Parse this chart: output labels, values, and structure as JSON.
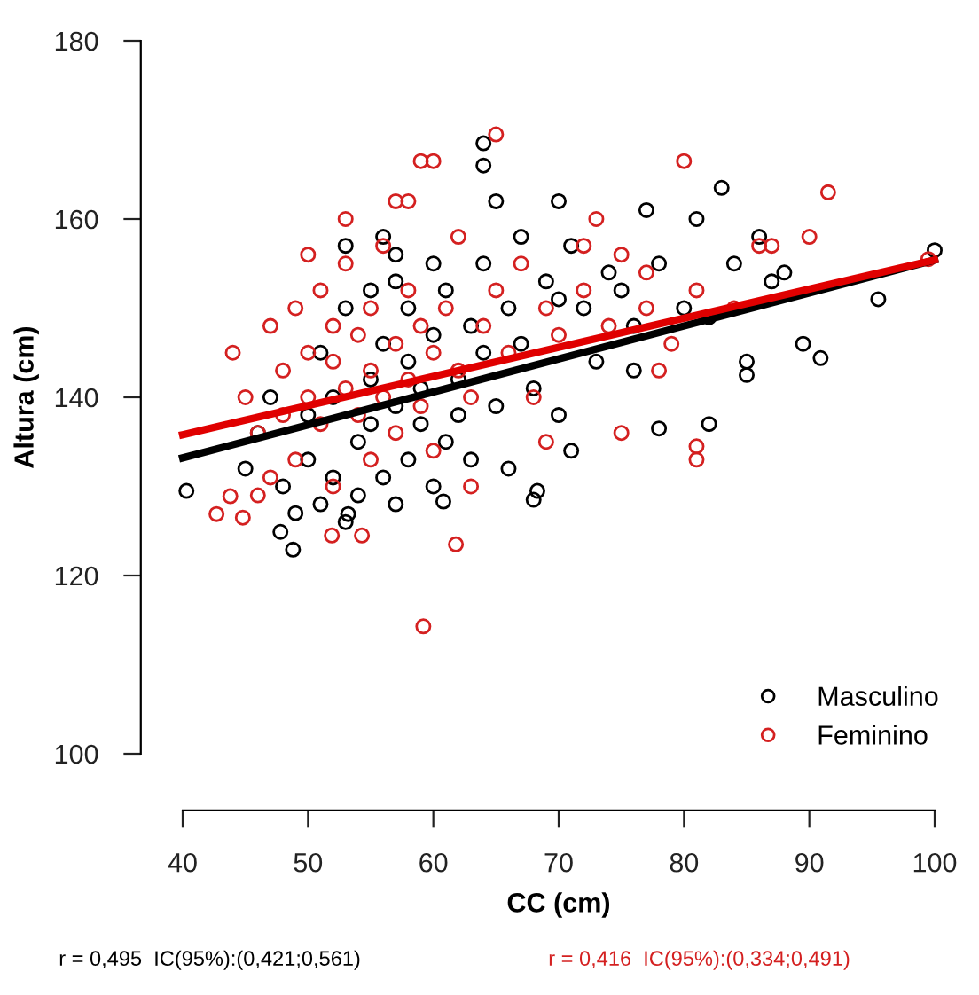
{
  "chart_data": {
    "type": "scatter",
    "xlabel": "CC (cm)",
    "ylabel": "Altura (cm)",
    "xlim": [
      40,
      100
    ],
    "ylim": [
      100,
      180
    ],
    "xticks": [
      40,
      50,
      60,
      70,
      80,
      90,
      100
    ],
    "yticks": [
      100,
      120,
      140,
      160,
      180
    ],
    "grid": false,
    "legend": "bottom right",
    "marker": "circle",
    "series": [
      {
        "name": "Masculino",
        "color": "#000000",
        "x": [
          40.3,
          48.8,
          47.8,
          53.2,
          68.3,
          60.8,
          90.9,
          95.5,
          100,
          89.5,
          87,
          85,
          85,
          82,
          83,
          81,
          78,
          76,
          70,
          71,
          64,
          64,
          57,
          57,
          68,
          71,
          74,
          77,
          48,
          49,
          50,
          50,
          51,
          51,
          52,
          52,
          53,
          53,
          54,
          54,
          55,
          55,
          55,
          56,
          56,
          57,
          57,
          58,
          58,
          58,
          59,
          59,
          60,
          60,
          61,
          61,
          62,
          62,
          63,
          63,
          64,
          64,
          65,
          66,
          66,
          67,
          67,
          68,
          69,
          70,
          70,
          72,
          73,
          75,
          76,
          78,
          80,
          82,
          84,
          86,
          88,
          46,
          47,
          45,
          53,
          56,
          60,
          65
        ],
        "values": [
          129.5,
          122.9,
          124.9,
          126.9,
          129.5,
          128.3,
          144.4,
          151,
          156.5,
          146,
          153,
          142.5,
          144,
          137,
          163.5,
          160,
          136.5,
          143,
          162,
          157,
          168.5,
          166,
          156,
          153,
          128.5,
          134,
          154,
          161,
          130,
          127,
          133,
          138,
          128,
          145,
          131,
          140,
          126,
          150,
          135,
          129,
          142,
          137,
          152,
          131,
          146,
          139,
          128,
          144,
          133,
          150,
          137,
          141,
          147,
          130,
          135,
          152,
          142,
          138,
          148,
          133,
          145,
          155,
          139,
          150,
          132,
          146,
          158,
          141,
          153,
          138,
          151,
          150,
          144,
          152,
          148,
          155,
          150,
          149,
          155,
          158,
          154,
          136,
          140,
          132,
          157,
          158,
          155,
          162
        ]
      },
      {
        "name": "Feminino",
        "color": "#d42020",
        "x": [
          59.2,
          43.8,
          42.7,
          44.8,
          51.9,
          54.3,
          61.8,
          99.5,
          91.5,
          87,
          81,
          81,
          80,
          78,
          72,
          65,
          59,
          60,
          57,
          75,
          63,
          69,
          77,
          73,
          44,
          45,
          46,
          47,
          47,
          48,
          48,
          49,
          49,
          50,
          50,
          50,
          51,
          51,
          52,
          52,
          52,
          53,
          53,
          54,
          54,
          55,
          55,
          55,
          56,
          56,
          57,
          57,
          58,
          58,
          59,
          59,
          60,
          60,
          61,
          62,
          62,
          63,
          64,
          65,
          66,
          67,
          68,
          69,
          70,
          72,
          74,
          75,
          77,
          79,
          81,
          84,
          86,
          90,
          53,
          58,
          46
        ],
        "values": [
          114.3,
          128.9,
          126.9,
          126.5,
          124.5,
          124.5,
          123.5,
          155.5,
          163,
          157,
          133,
          134.5,
          166.5,
          143,
          157,
          169.5,
          166.5,
          166.5,
          162,
          136,
          130,
          135,
          154,
          160,
          145,
          140,
          136,
          131,
          148,
          143,
          138,
          150,
          133,
          145,
          156,
          140,
          137,
          152,
          144,
          130,
          148,
          141,
          155,
          138,
          147,
          143,
          133,
          150,
          140,
          157,
          146,
          136,
          142,
          152,
          139,
          148,
          145,
          134,
          150,
          143,
          158,
          140,
          148,
          152,
          145,
          155,
          140,
          150,
          147,
          152,
          148,
          156,
          150,
          146,
          152,
          150,
          157,
          158,
          160,
          162,
          129
        ]
      },
      {
        "type": "line",
        "marker": "none",
        "color": "#000000",
        "x": [
          40,
          100
        ],
        "values": [
          133.2,
          155.4
        ]
      },
      {
        "type": "line",
        "marker": "none",
        "color": "#e00000",
        "x": [
          40,
          100
        ],
        "values": [
          135.8,
          155.4
        ]
      }
    ],
    "annotations": [
      "r = 0,495  IC(95%):(0,421;0,561)",
      "r = 0,416  IC(95%):(0,334;0,491)"
    ]
  }
}
